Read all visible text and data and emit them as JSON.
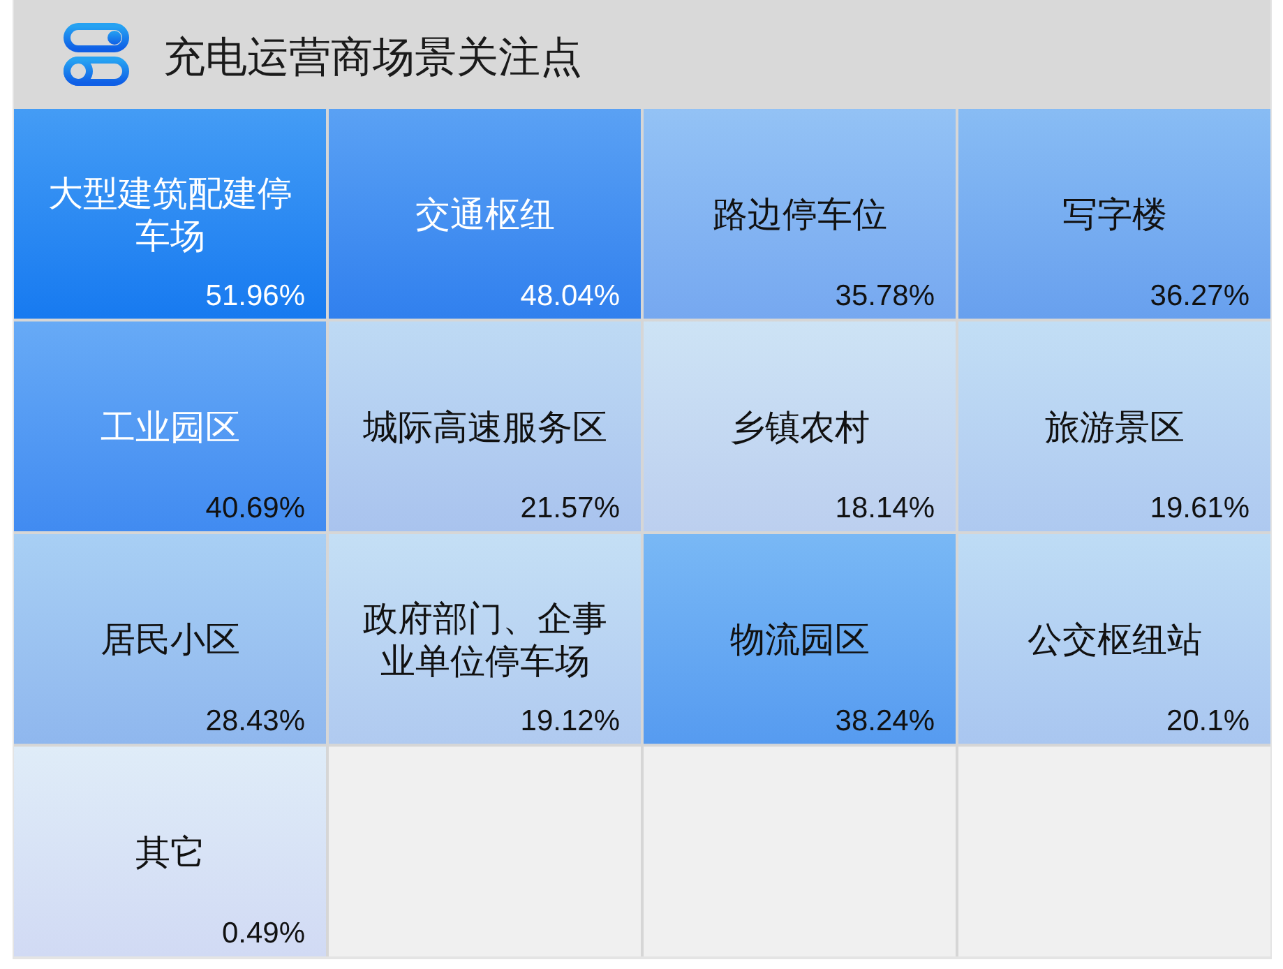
{
  "chart_data": {
    "type": "other",
    "title": "充电运营商场景关注点",
    "categories": [
      "大型建筑配建停车场",
      "交通枢纽",
      "路边停车位",
      "写字楼",
      "工业园区",
      "城际高速服务区",
      "乡镇农村",
      "旅游景区",
      "居民小区",
      "政府部门、企事业单位停车场",
      "物流园区",
      "公交枢纽站",
      "其它"
    ],
    "values": [
      51.96,
      48.04,
      35.78,
      36.27,
      40.69,
      21.57,
      18.14,
      19.61,
      28.43,
      19.12,
      38.24,
      20.1,
      0.49
    ],
    "value_labels": [
      "51.96%",
      "48.04%",
      "35.78%",
      "36.27%",
      "40.69%",
      "21.57%",
      "18.14%",
      "19.61%",
      "28.43%",
      "19.12%",
      "38.24%",
      "20.1%",
      "0.49%"
    ],
    "colors": [
      "#1880f2",
      "#3587f0",
      "#81b3f2",
      "#72abf0",
      "#4693f3",
      "#bad2f0",
      "#cfdff1",
      "#c0d8f2",
      "#9dc4f0",
      "#c2d9f2",
      "#5ea5f2",
      "#bad5f2",
      "#e6ebf6"
    ]
  }
}
